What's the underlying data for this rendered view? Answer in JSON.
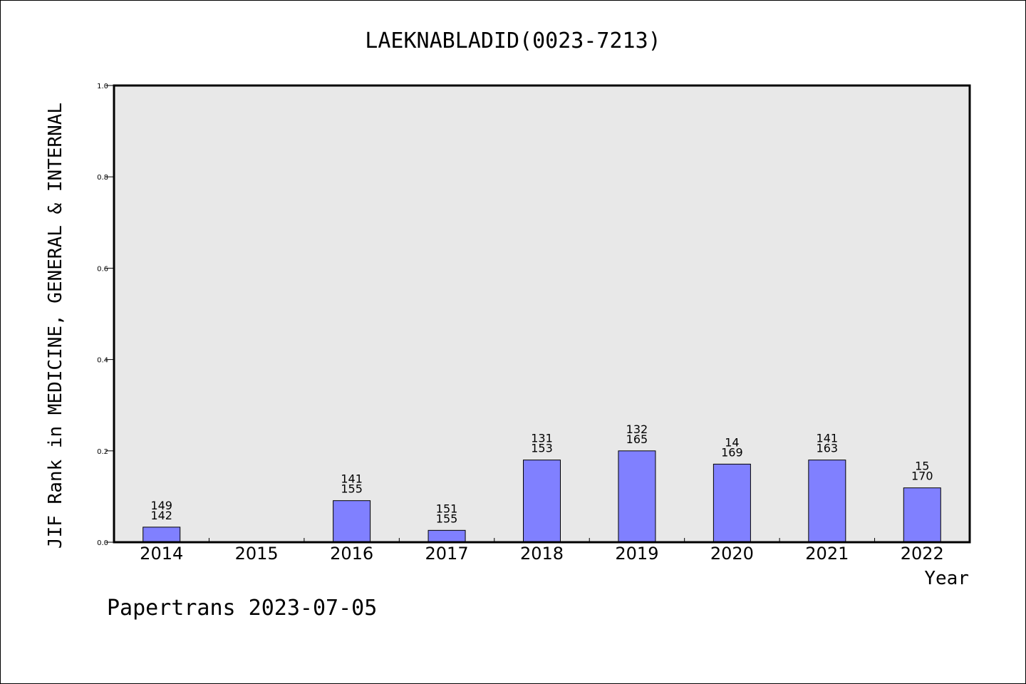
{
  "chart_data": {
    "type": "bar",
    "title": "LAEKNABLADID(0023-7213)",
    "xlabel": "Year",
    "ylabel": "JIF Rank in MEDICINE, GENERAL & INTERNAL",
    "ylim": [
      0,
      1.0
    ],
    "yticks": [
      "0.0",
      "0.2",
      "0.4",
      "0.6",
      "0.8",
      "1.0"
    ],
    "categories": [
      "2014",
      "2015",
      "2016",
      "2017",
      "2018",
      "2019",
      "2020",
      "2021",
      "2022"
    ],
    "values": [
      0.033,
      null,
      0.091,
      0.026,
      0.18,
      0.2,
      0.171,
      0.18,
      0.119
    ],
    "labels_top": [
      "149",
      "",
      "141",
      "151",
      "131",
      "132",
      "14",
      "141",
      "15"
    ],
    "labels_bottom": [
      "142",
      "",
      "155",
      "155",
      "153",
      "165",
      "169",
      "163",
      "170"
    ],
    "bar_color": "#8080ff",
    "plot_background": "#e8e8e8",
    "grid": false
  },
  "footer": "Papertrans 2023-07-05"
}
